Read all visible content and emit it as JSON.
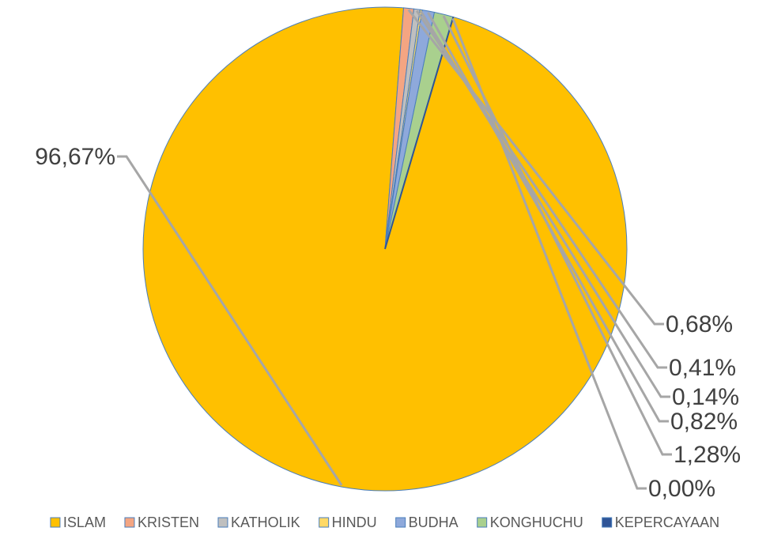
{
  "chart_data": {
    "type": "pie",
    "legend_position": "bottom",
    "slices": [
      {
        "name": "ISLAM",
        "value": 96.67,
        "label": "96,67%",
        "color": "#FFC000"
      },
      {
        "name": "KRISTEN",
        "value": 0.68,
        "label": "0,68%",
        "color": "#F4A582"
      },
      {
        "name": "KATHOLIK",
        "value": 0.41,
        "label": "0,41%",
        "color": "#BFBFBF"
      },
      {
        "name": "HINDU",
        "value": 0.14,
        "label": "0,14%",
        "color": "#FFD966"
      },
      {
        "name": "BUDHA",
        "value": 0.82,
        "label": "0,82%",
        "color": "#8EA9DB"
      },
      {
        "name": "KONGHUCHU",
        "value": 1.28,
        "label": "1,28%",
        "color": "#A9D08E"
      },
      {
        "name": "KEPERCAYAAN",
        "value": 0.0,
        "label": "0,00%",
        "color": "#2F5597"
      }
    ]
  }
}
